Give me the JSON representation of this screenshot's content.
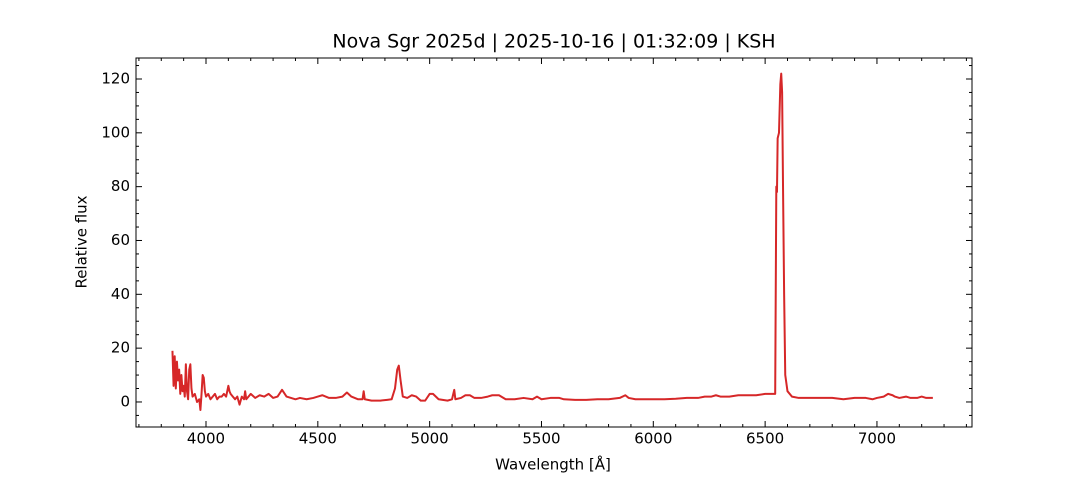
{
  "chart_data": {
    "type": "line",
    "title": "Nova Sgr 2025d | 2025-10-16 | 01:32:09 | KSH",
    "x_label": "Wavelength [Å]",
    "y_label": "Relative flux",
    "xlim": [
      3687,
      7425
    ],
    "ylim": [
      -9.3,
      127.8
    ],
    "xticks": [
      4000,
      4500,
      5000,
      5500,
      6000,
      6500,
      7000
    ],
    "yticks": [
      0,
      20,
      40,
      60,
      80,
      100,
      120
    ],
    "x_minor_ticks": [
      3700,
      3800,
      3900,
      4100,
      4200,
      4300,
      4400,
      4600,
      4700,
      4800,
      4900,
      5100,
      5200,
      5300,
      5400,
      5600,
      5700,
      5800,
      5900,
      6100,
      6200,
      6300,
      6400,
      6600,
      6700,
      6800,
      6900,
      7100,
      7200,
      7300,
      7400
    ],
    "y_minor_ticks": [
      -5,
      5,
      10,
      15,
      25,
      30,
      35,
      45,
      50,
      55,
      65,
      70,
      75,
      85,
      90,
      95,
      105,
      110,
      115,
      125
    ],
    "series": [
      {
        "name": "spectrum",
        "color": "#d62728",
        "x": [
          3850,
          3855,
          3860,
          3865,
          3870,
          3875,
          3880,
          3885,
          3890,
          3895,
          3900,
          3905,
          3910,
          3915,
          3920,
          3925,
          3930,
          3935,
          3940,
          3950,
          3960,
          3970,
          3975,
          3980,
          3985,
          3990,
          3995,
          4000,
          4010,
          4020,
          4030,
          4040,
          4050,
          4060,
          4070,
          4080,
          4090,
          4100,
          4105,
          4110,
          4120,
          4130,
          4140,
          4150,
          4160,
          4170,
          4175,
          4180,
          4190,
          4200,
          4220,
          4240,
          4260,
          4280,
          4300,
          4320,
          4340,
          4360,
          4380,
          4400,
          4420,
          4450,
          4480,
          4500,
          4520,
          4550,
          4580,
          4610,
          4630,
          4650,
          4680,
          4700,
          4705,
          4710,
          4740,
          4780,
          4810,
          4830,
          4845,
          4855,
          4862,
          4870,
          4880,
          4900,
          4920,
          4940,
          4960,
          4980,
          5000,
          5015,
          5040,
          5080,
          5100,
          5110,
          5115,
          5140,
          5160,
          5180,
          5200,
          5230,
          5260,
          5280,
          5310,
          5340,
          5380,
          5420,
          5460,
          5480,
          5500,
          5540,
          5580,
          5600,
          5650,
          5700,
          5750,
          5800,
          5850,
          5875,
          5890,
          5920,
          5960,
          6000,
          6050,
          6100,
          6150,
          6200,
          6230,
          6260,
          6280,
          6300,
          6340,
          6380,
          6420,
          6460,
          6500,
          6530,
          6545,
          6550,
          6553,
          6556,
          6562,
          6568,
          6572,
          6576,
          6580,
          6585,
          6590,
          6600,
          6620,
          6650,
          6700,
          6750,
          6800,
          6850,
          6900,
          6950,
          6980,
          7000,
          7030,
          7050,
          7070,
          7080,
          7100,
          7130,
          7150,
          7180,
          7200,
          7220,
          7250
        ],
        "values": [
          19,
          6,
          17,
          5,
          15,
          8,
          12,
          3,
          10,
          4,
          6,
          2,
          14,
          4,
          1,
          12,
          14,
          5,
          2,
          3,
          0,
          1,
          -3,
          3,
          10,
          9,
          4,
          2,
          3,
          1,
          2,
          3,
          1,
          2,
          2,
          3,
          2,
          6,
          4,
          3,
          2,
          1,
          2,
          -1,
          2,
          1,
          4,
          1,
          2,
          3,
          1.5,
          2.5,
          2,
          3,
          1.5,
          2,
          4.5,
          2,
          1.5,
          1,
          1.5,
          1,
          1.5,
          2,
          2.5,
          1.5,
          1.5,
          2,
          3.5,
          2,
          1,
          1,
          4,
          1,
          0.5,
          0.5,
          0.8,
          1,
          5,
          12,
          13.5,
          8,
          2,
          1.5,
          2.5,
          2,
          0.5,
          0.5,
          3,
          3,
          1,
          0.5,
          1,
          4.5,
          1,
          1.5,
          2.5,
          2.5,
          1.5,
          1.5,
          2,
          2.5,
          2.5,
          1,
          1,
          1.5,
          1,
          2,
          1,
          1.5,
          1.5,
          1,
          0.8,
          0.8,
          1,
          1,
          1.5,
          2.5,
          1.5,
          1,
          1,
          1,
          1,
          1.2,
          1.5,
          1.5,
          2,
          2,
          2.5,
          2,
          2,
          2.5,
          2.5,
          2.5,
          3,
          3,
          3,
          80,
          78,
          98,
          100,
          118,
          122,
          115,
          80,
          40,
          10,
          4,
          2,
          1.5,
          1.5,
          1.5,
          1.5,
          1,
          1.5,
          1.5,
          1,
          1.5,
          2,
          3,
          2.5,
          2,
          1.5,
          2,
          1.5,
          1.5,
          2,
          1.5,
          1.5
        ]
      }
    ]
  }
}
